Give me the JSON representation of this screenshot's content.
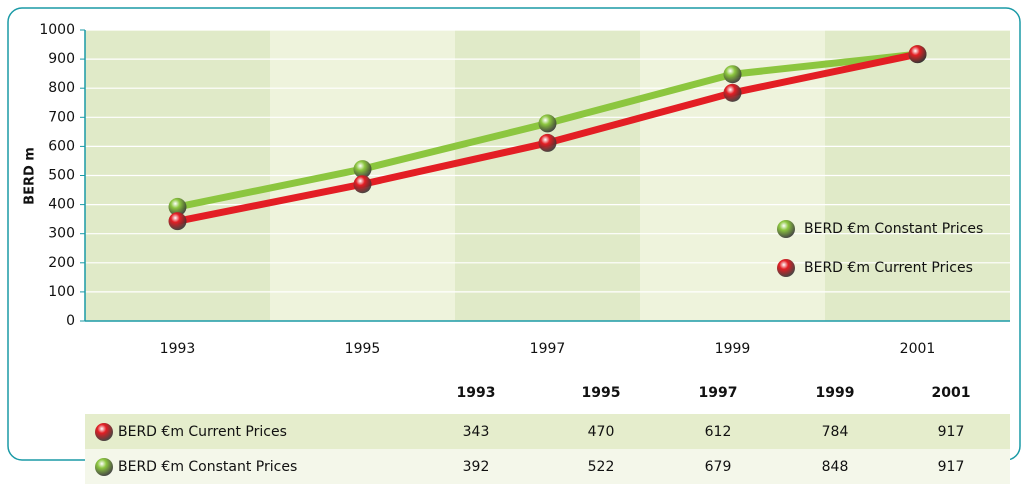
{
  "chart_data": {
    "type": "line",
    "y_axis_label": "BERD m",
    "categories": [
      "1993",
      "1995",
      "1997",
      "1999",
      "2001"
    ],
    "series": [
      {
        "name": "BERD €m Constant Prices",
        "color": "#8cc63f",
        "values": [
          392,
          522,
          679,
          848,
          917
        ]
      },
      {
        "name": "BERD €m Current Prices",
        "color": "#e31e24",
        "values": [
          343,
          470,
          612,
          784,
          917
        ]
      }
    ],
    "ylim": [
      0,
      1000
    ],
    "yticks": [
      0,
      100,
      200,
      300,
      400,
      500,
      600,
      700,
      800,
      900,
      1000
    ],
    "grid": true,
    "legend": "right"
  }
}
